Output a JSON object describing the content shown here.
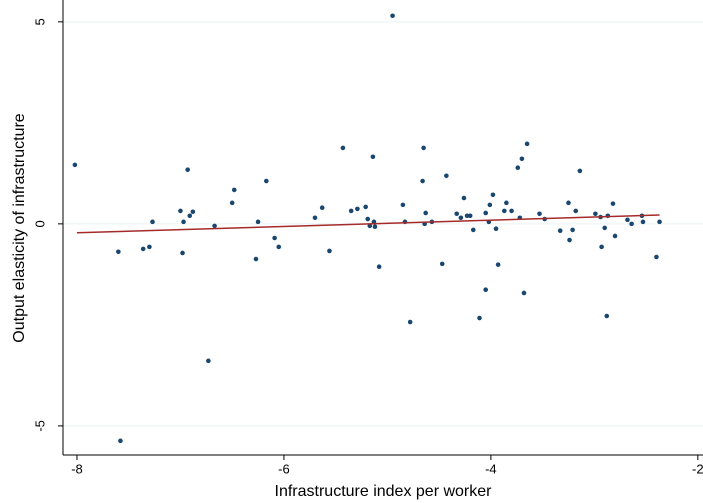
{
  "chart_data": {
    "type": "scatter",
    "xlabel": "Infrastructure index per worker",
    "ylabel": "Output elasticity of infrastructure",
    "xlim": [
      -8.135,
      -1.95
    ],
    "ylim": [
      -5.72,
      5.54
    ],
    "xticks": [
      -8,
      -6,
      -4,
      -2
    ],
    "yticks": [
      -5,
      0,
      5
    ],
    "grid": true,
    "series": [
      {
        "color": "#1a476f",
        "x": [
          -8.02,
          -7.6,
          -7.58,
          -7.27,
          -7.36,
          -7.3,
          -7.0,
          -6.98,
          -6.97,
          -6.93,
          -6.91,
          -6.88,
          -6.73,
          -6.67,
          -6.5,
          -6.48,
          -6.27,
          -6.25,
          -6.17,
          -6.09,
          -6.05,
          -5.7,
          -5.63,
          -5.56,
          -5.43,
          -5.35,
          -5.29,
          -5.21,
          -5.19,
          -5.17,
          -5.14,
          -5.13,
          -5.12,
          -5.08,
          -4.95,
          -4.85,
          -4.83,
          -4.78,
          -4.66,
          -4.65,
          -4.64,
          -4.63,
          -4.57,
          -4.47,
          -4.43,
          -4.33,
          -4.29,
          -4.26,
          -4.23,
          -4.2,
          -4.17,
          -4.11,
          -4.05,
          -4.05,
          -4.02,
          -4.01,
          -3.98,
          -3.95,
          -3.93,
          -3.87,
          -3.85,
          -3.8,
          -3.74,
          -3.72,
          -3.7,
          -3.68,
          -3.65,
          -3.53,
          -3.48,
          -3.33,
          -3.25,
          -3.24,
          -3.21,
          -3.18,
          -3.14,
          -2.99,
          -2.94,
          -2.93,
          -2.9,
          -2.88,
          -2.87,
          -2.82,
          -2.8,
          -2.68,
          -2.64,
          -2.54,
          -2.53,
          -2.4,
          -2.37
        ],
        "values": [
          1.46,
          -0.69,
          -5.37,
          0.05,
          -0.62,
          -0.57,
          0.32,
          -0.72,
          0.05,
          1.34,
          0.2,
          0.3,
          -3.39,
          -0.05,
          0.52,
          0.84,
          -0.87,
          0.05,
          1.06,
          -0.35,
          -0.57,
          0.15,
          0.4,
          -0.67,
          1.88,
          0.32,
          0.37,
          0.42,
          0.12,
          -0.05,
          1.66,
          0.05,
          -0.07,
          -1.06,
          5.15,
          0.47,
          0.05,
          -2.43,
          1.06,
          1.88,
          0.0,
          0.27,
          0.05,
          -0.99,
          1.19,
          0.25,
          0.15,
          0.64,
          0.2,
          0.2,
          -0.15,
          -2.33,
          -1.63,
          0.27,
          0.05,
          0.47,
          0.72,
          -0.12,
          -1.01,
          0.32,
          0.52,
          0.32,
          1.39,
          0.15,
          1.61,
          -1.71,
          1.98,
          0.25,
          0.12,
          -0.17,
          0.52,
          -0.4,
          -0.15,
          0.32,
          1.31,
          0.25,
          0.17,
          -0.57,
          -0.1,
          -2.28,
          0.2,
          0.5,
          -0.3,
          0.1,
          0.0,
          0.2,
          0.05,
          -0.82,
          0.05
        ]
      },
      {
        "type": "line",
        "color": "#a52a2a",
        "x": [
          -8.0,
          -2.37
        ],
        "values": [
          -0.22,
          0.22
        ]
      }
    ]
  }
}
